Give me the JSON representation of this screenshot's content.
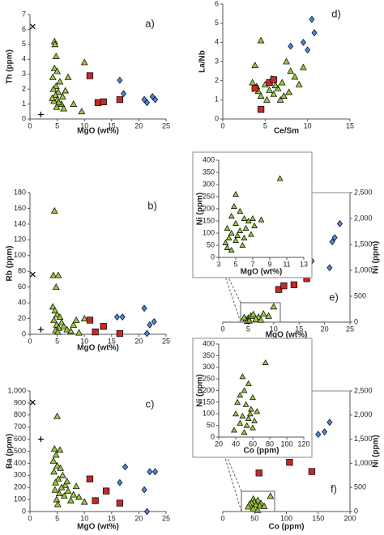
{
  "chart_data": [
    {
      "type": "scatter",
      "label": "a)",
      "xlabel": "MgO (wt%)",
      "ylabel": "Th (ppm)",
      "xlim": [
        0,
        25
      ],
      "ylim": [
        0,
        7
      ],
      "xticks": [
        0,
        5,
        10,
        15,
        20,
        25
      ],
      "yticks": [
        0,
        1,
        2,
        3,
        4,
        5,
        6,
        7
      ],
      "series": [
        {
          "marker": "triangle",
          "color": "#9bc53d",
          "x": [
            4.5,
            4.6,
            4.8,
            4.5,
            5,
            4.2,
            5.5,
            4.8,
            4.3,
            5.2,
            4.7,
            6,
            5,
            4.4,
            5.8,
            4.9,
            6.5,
            8,
            9.5,
            10,
            7,
            5.3,
            4.1,
            6.2
          ],
          "y": [
            5.2,
            5.0,
            4.2,
            3.4,
            3.2,
            2.8,
            2.5,
            2.2,
            2.0,
            1.8,
            1.6,
            1.5,
            1.3,
            1.2,
            1.0,
            0.8,
            1.9,
            1.0,
            0.5,
            3.8,
            2.8,
            1.1,
            1.4,
            0.7
          ]
        },
        {
          "marker": "square",
          "color": "#c62828",
          "x": [
            11,
            12.5,
            13.5,
            16.5
          ],
          "y": [
            2.9,
            1.1,
            1.15,
            1.3
          ]
        },
        {
          "marker": "diamond",
          "color": "#4a86e8",
          "x": [
            16.5,
            17.2,
            21,
            21.5,
            22.5,
            23
          ],
          "y": [
            2.6,
            1.7,
            1.3,
            1.1,
            1.5,
            1.3
          ]
        },
        {
          "marker": "cross",
          "color": "#000000",
          "x": [
            0.5
          ],
          "y": [
            6.2
          ]
        },
        {
          "marker": "plus",
          "color": "#000000",
          "x": [
            2
          ],
          "y": [
            0.3
          ]
        }
      ]
    },
    {
      "type": "scatter",
      "label": "d)",
      "xlabel": "Ce/Sm",
      "ylabel": "La/Nb",
      "xlim": [
        0,
        15
      ],
      "ylim": [
        0,
        6
      ],
      "xticks": [
        0,
        5,
        10,
        15
      ],
      "yticks": [
        0,
        1,
        2,
        3,
        4,
        5,
        6
      ],
      "series": [
        {
          "marker": "triangle",
          "color": "#9bc53d",
          "x": [
            4.5,
            3.8,
            7.5,
            8,
            3.5,
            4,
            5,
            5.5,
            6,
            6.5,
            7,
            4.5,
            5.8,
            6.8,
            7.8,
            8.5,
            9,
            9.5,
            5.2,
            4.2,
            6.2,
            7.2
          ],
          "y": [
            4.1,
            2.8,
            3.0,
            2.5,
            1.9,
            1.7,
            1.8,
            1.5,
            1.3,
            1.6,
            1.9,
            1.2,
            2.1,
            1.0,
            1.4,
            2.2,
            1.8,
            2.7,
            1.0,
            1.45,
            1.75,
            1.2
          ]
        },
        {
          "marker": "square",
          "color": "#c62828",
          "x": [
            3.8,
            4.5,
            5.5,
            6
          ],
          "y": [
            1.6,
            0.5,
            1.9,
            2.05
          ]
        },
        {
          "marker": "diamond",
          "color": "#4a86e8",
          "x": [
            10.5,
            9.5,
            10,
            10.8,
            8
          ],
          "y": [
            5.2,
            4.0,
            3.6,
            4.5,
            3.8
          ]
        }
      ]
    },
    {
      "type": "scatter",
      "label": "b)",
      "xlabel": "MgO (wt%)",
      "ylabel": "Rb (ppm)",
      "xlim": [
        0,
        25
      ],
      "ylim": [
        0,
        180
      ],
      "xticks": [
        0,
        5,
        10,
        15,
        20,
        25
      ],
      "yticks": [
        0,
        20,
        40,
        60,
        80,
        100,
        120,
        140,
        160,
        180
      ],
      "series": [
        {
          "marker": "triangle",
          "color": "#9bc53d",
          "x": [
            4.5,
            4.3,
            5.2,
            4.8,
            4.2,
            4.6,
            5,
            5.5,
            4.4,
            5.8,
            4.9,
            6.2,
            5.3,
            4.7,
            6.8,
            7.5,
            8,
            10,
            8.5,
            5.1,
            9
          ],
          "y": [
            157,
            75,
            75,
            60,
            35,
            30,
            25,
            22,
            18,
            15,
            12,
            10,
            8,
            5,
            6,
            4,
            12,
            20,
            18,
            3,
            2
          ]
        },
        {
          "marker": "square",
          "color": "#c62828",
          "x": [
            11,
            12,
            13.5,
            16.5
          ],
          "y": [
            18,
            3,
            10,
            1
          ]
        },
        {
          "marker": "diamond",
          "color": "#4a86e8",
          "x": [
            16,
            17,
            21,
            21.5,
            22,
            22.8
          ],
          "y": [
            22,
            22,
            33,
            1,
            12,
            16
          ]
        },
        {
          "marker": "cross",
          "color": "#000000",
          "x": [
            0.5
          ],
          "y": [
            76
          ]
        },
        {
          "marker": "plus",
          "color": "#000000",
          "x": [
            2
          ],
          "y": [
            6
          ]
        }
      ]
    },
    {
      "type": "scatter",
      "label": "e)",
      "xlabel": "MgO (wt%)",
      "ylabel": "Ni (ppm)",
      "yaxis": "right",
      "xlim": [
        0,
        25
      ],
      "ylim": [
        0,
        2500
      ],
      "xticks": [
        0,
        5,
        10,
        15,
        20,
        25
      ],
      "yticks": [
        0,
        500,
        {
          "value": 1000,
          "label": "1,000"
        },
        {
          "value": 1500,
          "label": "1,500"
        },
        {
          "value": 2000,
          "label": "2,000"
        },
        {
          "value": 2500,
          "label": "2,500"
        }
      ],
      "series": [
        {
          "marker": "triangle",
          "color": "#9bc53d",
          "x": [
            4.5,
            5,
            5.5,
            6,
            7,
            8,
            9,
            10,
            4.8,
            6.5,
            7.5,
            5.2,
            4.2
          ],
          "y": [
            50,
            80,
            120,
            150,
            100,
            160,
            120,
            300,
            20,
            60,
            40,
            30,
            90
          ]
        },
        {
          "marker": "square",
          "color": "#c62828",
          "x": [
            11,
            12,
            14,
            16.5
          ],
          "y": [
            630,
            700,
            720,
            840
          ]
        },
        {
          "marker": "diamond",
          "color": "#4a86e8",
          "x": [
            16.5,
            17.5,
            21,
            21.5,
            22,
            23
          ],
          "y": [
            920,
            1180,
            1050,
            1550,
            1630,
            1900
          ]
        }
      ]
    },
    {
      "type": "scatter",
      "xlabel": "MgO (wt%)",
      "ylabel": "Ni (ppm)",
      "xlim": [
        3,
        13
      ],
      "ylim": [
        0,
        400
      ],
      "xticks": [
        3,
        5,
        7,
        9,
        11,
        13
      ],
      "yticks": [
        0,
        50,
        100,
        150,
        200,
        250,
        300,
        350,
        400
      ],
      "series": [
        {
          "marker": "triangle",
          "color": "#9bc53d",
          "x": [
            5,
            4.8,
            5.5,
            4.5,
            6,
            7,
            6.5,
            8,
            4,
            5,
            5.5,
            6.2,
            7.2,
            4.5,
            5.2,
            6.8,
            3.8,
            4.2,
            5,
            6,
            5.8,
            4,
            4.5,
            10.2
          ],
          "y": [
            260,
            210,
            190,
            170,
            160,
            160,
            150,
            155,
            120,
            140,
            110,
            120,
            130,
            100,
            90,
            95,
            60,
            80,
            70,
            80,
            50,
            40,
            30,
            325
          ]
        }
      ]
    },
    {
      "type": "scatter",
      "label": "c)",
      "xlabel": "MgO (wt%)",
      "ylabel": "Ba (ppm)",
      "xlim": [
        0,
        25
      ],
      "ylim": [
        0,
        1000
      ],
      "xticks": [
        0,
        5,
        10,
        15,
        20,
        25
      ],
      "yticks": [
        0,
        100,
        200,
        300,
        400,
        500,
        600,
        700,
        800,
        900,
        {
          "value": 1000,
          "label": "1,000"
        }
      ],
      "series": [
        {
          "marker": "triangle",
          "color": "#9bc53d",
          "x": [
            5,
            4.5,
            5.5,
            4.8,
            4.3,
            5,
            5.6,
            4.4,
            6,
            5.2,
            4.7,
            6.5,
            5.8,
            4.6,
            7,
            5.4,
            8,
            6.3,
            9,
            4.9,
            7.5,
            10,
            5.1,
            6.8,
            8.5
          ],
          "y": [
            790,
            520,
            510,
            470,
            420,
            380,
            360,
            330,
            300,
            270,
            240,
            220,
            200,
            180,
            170,
            150,
            140,
            130,
            120,
            100,
            90,
            80,
            60,
            250,
            210
          ]
        },
        {
          "marker": "square",
          "color": "#c62828",
          "x": [
            11,
            12,
            14,
            16.5
          ],
          "y": [
            270,
            90,
            170,
            70
          ]
        },
        {
          "marker": "diamond",
          "color": "#4a86e8",
          "x": [
            16.5,
            17.5,
            21,
            21.5,
            22,
            23
          ],
          "y": [
            240,
            370,
            180,
            0,
            330,
            330
          ]
        },
        {
          "marker": "cross",
          "color": "#000000",
          "x": [
            0.5
          ],
          "y": [
            905
          ]
        },
        {
          "marker": "plus",
          "color": "#000000",
          "x": [
            2
          ],
          "y": [
            600
          ]
        }
      ]
    },
    {
      "type": "scatter",
      "label": "f)",
      "xlabel": "Co (ppm)",
      "ylabel": "Ni (ppm)",
      "yaxis": "right",
      "xlim": [
        0,
        200
      ],
      "ylim": [
        0,
        2500
      ],
      "xticks": [
        0,
        50,
        100,
        150,
        200
      ],
      "yticks": [
        0,
        500,
        {
          "value": 1000,
          "label": "1,000"
        },
        {
          "value": 1500,
          "label": "1,500"
        },
        {
          "value": 2000,
          "label": "2,000"
        },
        {
          "value": 2500,
          "label": "2,500"
        }
      ],
      "series": [
        {
          "marker": "triangle",
          "color": "#9bc53d",
          "x": [
            48,
            55,
            75,
            50,
            45,
            60,
            42,
            52,
            58,
            65,
            40,
            48,
            55
          ],
          "y": [
            260,
            230,
            320,
            200,
            180,
            170,
            150,
            140,
            120,
            110,
            100,
            60,
            30
          ]
        },
        {
          "marker": "square",
          "color": "#c62828",
          "x": [
            57,
            105,
            130,
            140
          ],
          "y": [
            800,
            1020,
            1230,
            830
          ]
        },
        {
          "marker": "diamond",
          "color": "#4a86e8",
          "x": [
            95,
            110,
            150,
            160,
            168
          ],
          "y": [
            1250,
            1180,
            1600,
            1650,
            1850
          ]
        }
      ]
    },
    {
      "type": "scatter",
      "xlabel": "Co (ppm)",
      "ylabel": "Ni (ppm)",
      "xlim": [
        20,
        120
      ],
      "ylim": [
        0,
        400
      ],
      "xticks": [
        20,
        40,
        60,
        80,
        100,
        120
      ],
      "yticks": [
        0,
        50,
        100,
        150,
        200,
        250,
        300,
        350,
        400
      ],
      "series": [
        {
          "marker": "triangle",
          "color": "#9bc53d",
          "x": [
            48,
            55,
            75,
            50,
            45,
            60,
            42,
            52,
            58,
            65,
            40,
            48,
            55,
            62,
            45,
            53,
            60,
            38,
            50,
            57
          ],
          "y": [
            260,
            230,
            320,
            200,
            180,
            170,
            150,
            140,
            120,
            110,
            100,
            90,
            80,
            70,
            60,
            50,
            40,
            30,
            20,
            100
          ]
        }
      ]
    }
  ]
}
